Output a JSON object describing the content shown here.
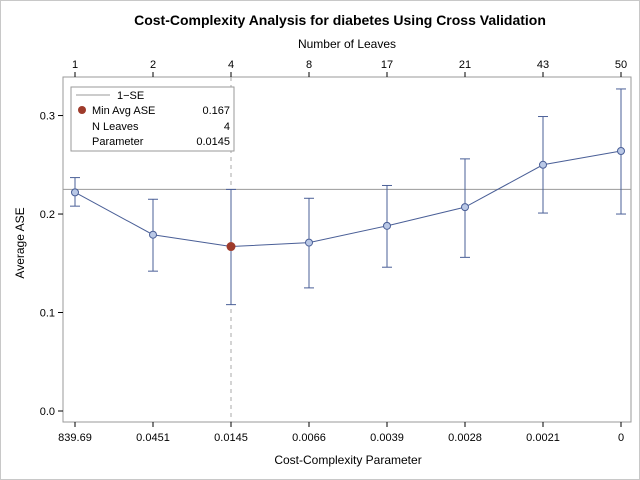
{
  "chart_data": {
    "type": "line",
    "title": "Cost-Complexity Analysis for diabetes Using Cross Validation",
    "xlabel": "Cost-Complexity Parameter",
    "x2label": "Number of Leaves",
    "ylabel": "Average ASE",
    "categories": [
      "839.69",
      "0.0451",
      "0.0145",
      "0.0066",
      "0.0039",
      "0.0028",
      "0.0021",
      "0"
    ],
    "leaves": [
      "1",
      "2",
      "4",
      "8",
      "17",
      "21",
      "43",
      "50"
    ],
    "yticks": [
      "0.0",
      "0.1",
      "0.2",
      "0.3"
    ],
    "ylim": [
      0,
      0.33
    ],
    "series": [
      {
        "values": [
          0.222,
          0.179,
          0.167,
          0.171,
          0.188,
          0.207,
          0.25,
          0.264
        ],
        "lower": [
          0.208,
          0.142,
          0.108,
          0.125,
          0.146,
          0.156,
          0.201,
          0.2
        ],
        "upper": [
          0.237,
          0.215,
          0.225,
          0.216,
          0.229,
          0.256,
          0.299,
          0.327
        ]
      }
    ],
    "one_se_value": 0.225,
    "min_index": 2,
    "legend": {
      "position": "top-left",
      "one_se_label": "1−SE",
      "min_label": "Min Avg ASE",
      "min_value": "0.167",
      "leaves_label": "N Leaves",
      "leaves_value": "4",
      "param_label": "Parameter",
      "param_value": "0.0145"
    },
    "colors": {
      "line": "#4a5f97",
      "marker_fill": "#b9c8e6",
      "min_marker": "#9e3b2b",
      "one_se_line": "#9a9a9a",
      "frame": "#9a9a9a"
    }
  }
}
